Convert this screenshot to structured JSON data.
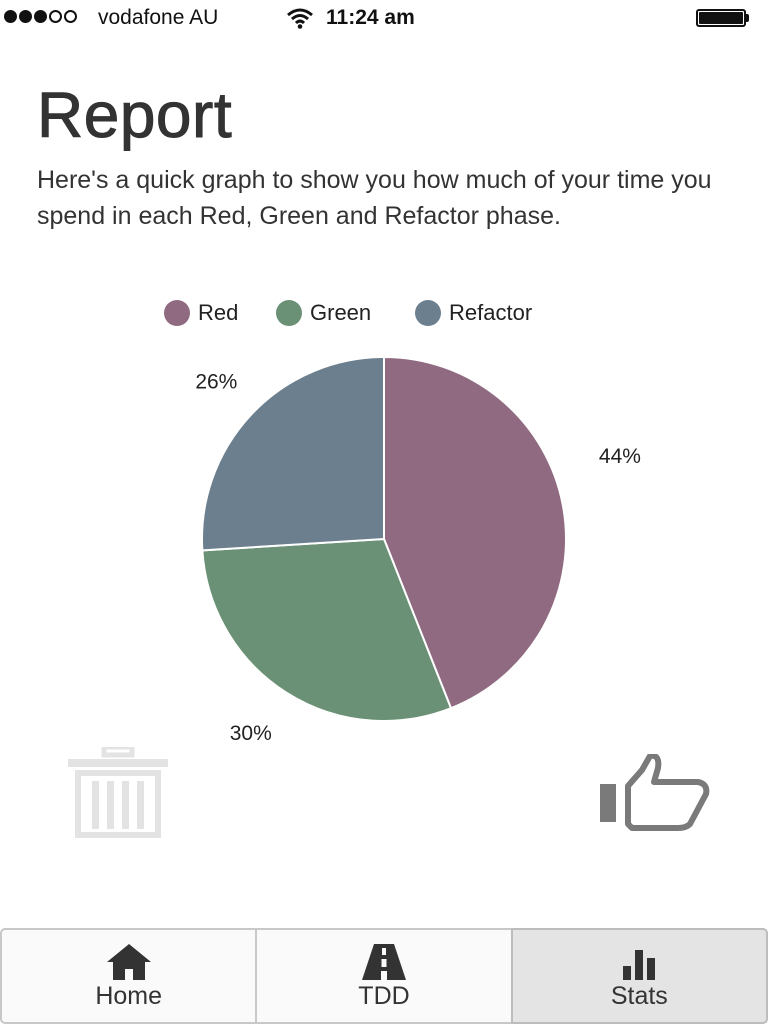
{
  "status_bar": {
    "carrier": "vodafone AU",
    "time": "11:24 am",
    "signal_bars_filled": 3,
    "signal_bars_total": 5
  },
  "header": {
    "title": "Report",
    "description": "Here's a quick graph to show you how much of your time you spend in each Red, Green and Refactor phase."
  },
  "chart_data": {
    "type": "pie",
    "series": [
      {
        "name": "Red",
        "value": 44,
        "label": "44%",
        "color": "#906a80"
      },
      {
        "name": "Green",
        "value": 30,
        "label": "30%",
        "color": "#6a9175"
      },
      {
        "name": "Refactor",
        "value": 26,
        "label": "26%",
        "color": "#6b7f8e"
      }
    ],
    "legend_position": "top"
  },
  "actions": {
    "trash": {
      "icon": "trash-icon"
    },
    "thumbs_up": {
      "icon": "thumbs-up-icon"
    }
  },
  "tabs": [
    {
      "label": "Home",
      "icon": "home-icon",
      "active": false
    },
    {
      "label": "TDD",
      "icon": "road-icon",
      "active": false
    },
    {
      "label": "Stats",
      "icon": "bar-chart-icon",
      "active": true
    }
  ]
}
